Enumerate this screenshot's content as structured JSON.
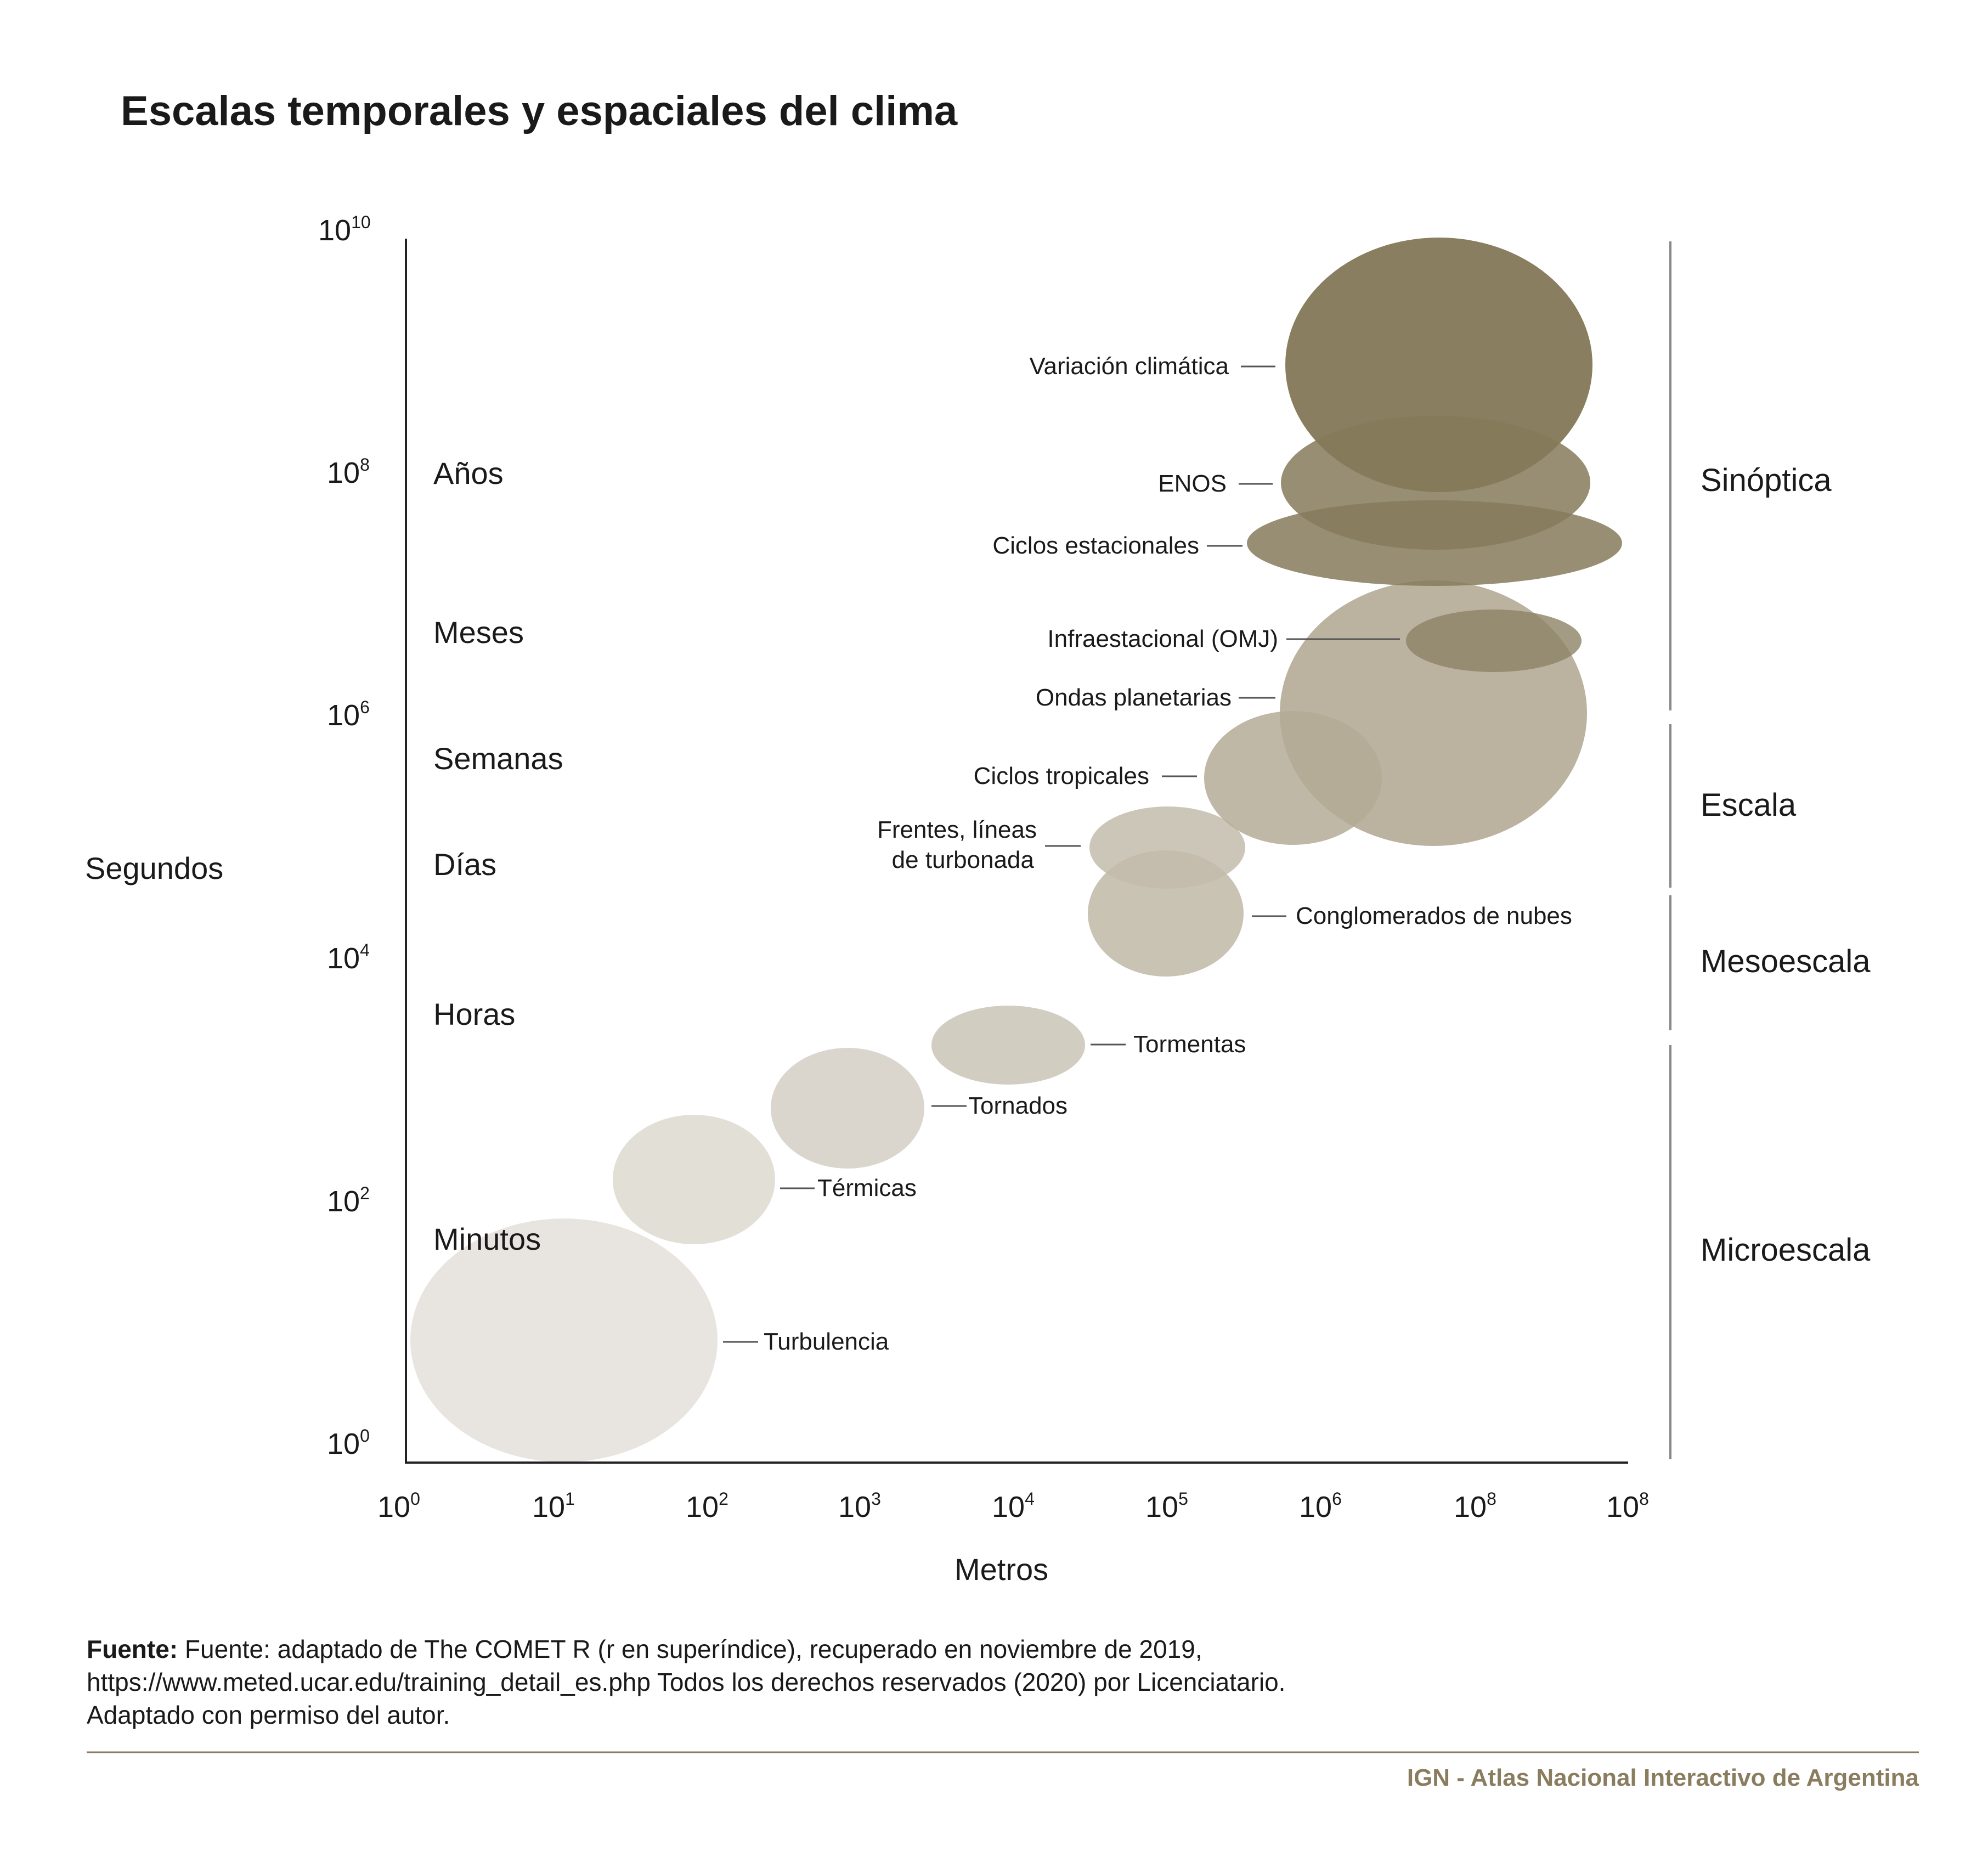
{
  "title": "Escalas temporales y espaciales del clima",
  "y_axis_label": "Segundos",
  "x_axis_label": "Metros",
  "y_ticks": [
    {
      "base": "10",
      "exp": "10"
    },
    {
      "base": "10",
      "exp": "8"
    },
    {
      "base": "10",
      "exp": "6"
    },
    {
      "base": "10",
      "exp": "4"
    },
    {
      "base": "10",
      "exp": "2"
    },
    {
      "base": "10",
      "exp": "0"
    }
  ],
  "x_ticks": [
    {
      "base": "10",
      "exp": "0"
    },
    {
      "base": "10",
      "exp": "1"
    },
    {
      "base": "10",
      "exp": "2"
    },
    {
      "base": "10",
      "exp": "3"
    },
    {
      "base": "10",
      "exp": "4"
    },
    {
      "base": "10",
      "exp": "5"
    },
    {
      "base": "10",
      "exp": "6"
    },
    {
      "base": "10",
      "exp": "8"
    },
    {
      "base": "10",
      "exp": "8"
    }
  ],
  "time_labels": [
    "Años",
    "Meses",
    "Semanas",
    "Días",
    "Horas",
    "Minutos"
  ],
  "scale_labels": [
    "Sinóptica",
    "Escala",
    "Mesoescala",
    "Microescala"
  ],
  "phenomena": [
    {
      "label": "Variación climática",
      "color": "#857a5a"
    },
    {
      "label": "ENOS",
      "color": "#857a5a"
    },
    {
      "label": "Ciclos estacionales",
      "color": "#857a5a"
    },
    {
      "label": "Ondas planetarias",
      "color": "#b4ab96"
    },
    {
      "label": "Infraestacional (OMJ)",
      "color": "#8d8265"
    },
    {
      "label": "Ciclos tropicales",
      "color": "#b4ab96"
    },
    {
      "label": "Frentes, líneas",
      "label2": "de turbonada",
      "color": "#c3bcac"
    },
    {
      "label": "Conglomerados de nubes",
      "color": "#c3bcac"
    },
    {
      "label": "Tormentas",
      "color": "#cfcabe"
    },
    {
      "label": "Tornados",
      "color": "#d8d4ca"
    },
    {
      "label": "Térmicas",
      "color": "#e0ddd4"
    },
    {
      "label": "Turbulencia",
      "color": "#e7e4df"
    }
  ],
  "source": {
    "bold": "Fuente:",
    "line1": " Fuente: adaptado de The COMET R (r en superíndice), recuperado en noviembre de 2019,",
    "line2": "https://www.meted.ucar.edu/training_detail_es.php Todos los derechos reservados (2020) por Licenciatario.",
    "line3": "Adaptado con permiso del autor."
  },
  "footer": "IGN - Atlas Nacional Interactivo de Argentina",
  "colors": {
    "accent": "#8a7c5f",
    "rule": "#8a7c5f"
  }
}
